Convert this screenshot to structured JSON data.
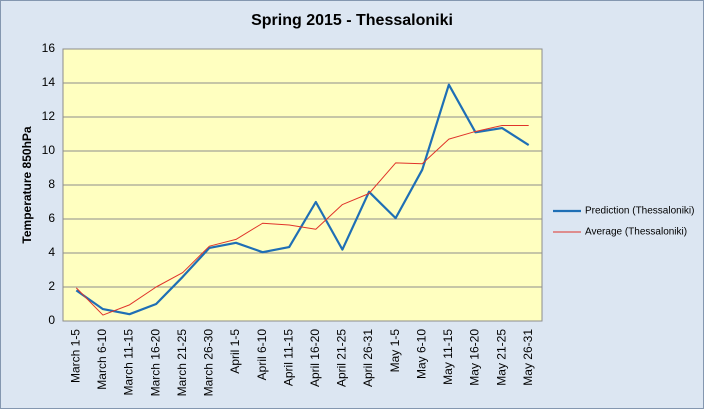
{
  "chart_data": {
    "type": "line",
    "title": "Spring 2015 - Thessaloniki",
    "y_label": "Temperature 850hPa",
    "categories": [
      "March 1-5",
      "March 6-10",
      "March 11-15",
      "March 16-20",
      "March 21-25",
      "March 26-30",
      "April 1-5",
      "April 6-10",
      "April 11-15",
      "April 16-20",
      "April 21-25",
      "April 26-31",
      "May 1-5",
      "May 6-10",
      "May 11-15",
      "May 16-20",
      "May 21-25",
      "May 26-31"
    ],
    "series": [
      {
        "name": "Prediction (Thessaloniki)",
        "color": "#1f6fb5",
        "width": 2.2,
        "values": [
          1.8,
          0.7,
          0.4,
          1.0,
          2.6,
          4.3,
          4.6,
          4.05,
          4.35,
          7.0,
          4.2,
          7.6,
          6.05,
          8.9,
          13.9,
          11.1,
          11.35,
          10.35
        ]
      },
      {
        "name": "Average (Thessaloniki)",
        "color": "#e0342a",
        "width": 1,
        "values": [
          1.95,
          0.35,
          0.95,
          2.0,
          2.85,
          4.4,
          4.8,
          5.75,
          5.65,
          5.4,
          6.85,
          7.5,
          9.3,
          9.25,
          10.7,
          11.15,
          11.5,
          11.5
        ]
      }
    ],
    "ylim": [
      0,
      16
    ],
    "yticks": [
      0,
      2,
      4,
      6,
      8,
      10,
      12,
      14,
      16
    ],
    "grid": true,
    "legend": "right"
  }
}
